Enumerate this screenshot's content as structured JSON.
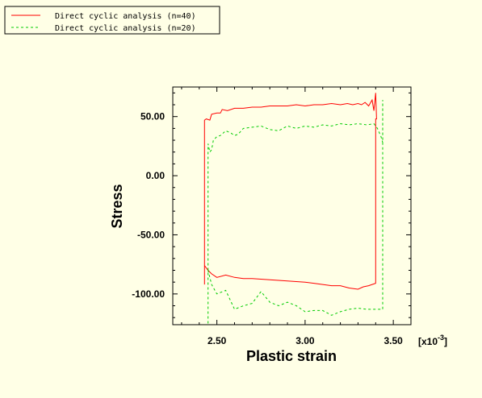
{
  "chart_data": {
    "type": "line",
    "xlabel": "Plastic strain",
    "ylabel": "Stress",
    "x_multiplier": "[x10",
    "x_multiplier_exp": "-3",
    "x_multiplier_close": "]",
    "xlim": [
      2.25,
      3.6
    ],
    "ylim": [
      -126,
      75
    ],
    "x_ticks": [
      2.5,
      3.0,
      3.5
    ],
    "x_tick_labels": [
      "2.50",
      "3.00",
      "3.50"
    ],
    "y_ticks": [
      50,
      0,
      -50,
      -100
    ],
    "y_tick_labels": [
      "50.00",
      "0.00",
      "-50.00",
      "-100.00"
    ],
    "grid": false,
    "legend_position": "top-left",
    "series": [
      {
        "name": "Direct cyclic analysis (n=40)",
        "color": "#ff0000",
        "style": "solid",
        "points": [
          [
            2.43,
            -92
          ],
          [
            2.43,
            47
          ],
          [
            2.44,
            48
          ],
          [
            2.46,
            47
          ],
          [
            2.47,
            52
          ],
          [
            2.5,
            53
          ],
          [
            2.52,
            53
          ],
          [
            2.53,
            56
          ],
          [
            2.56,
            55
          ],
          [
            2.6,
            57
          ],
          [
            2.65,
            57
          ],
          [
            2.7,
            58
          ],
          [
            2.75,
            58
          ],
          [
            2.8,
            59
          ],
          [
            2.85,
            59
          ],
          [
            2.9,
            59
          ],
          [
            2.95,
            60
          ],
          [
            3.0,
            59
          ],
          [
            3.05,
            60
          ],
          [
            3.1,
            60
          ],
          [
            3.15,
            61
          ],
          [
            3.2,
            60
          ],
          [
            3.24,
            61
          ],
          [
            3.27,
            60
          ],
          [
            3.3,
            61
          ],
          [
            3.32,
            60
          ],
          [
            3.34,
            62
          ],
          [
            3.36,
            59
          ],
          [
            3.38,
            64
          ],
          [
            3.39,
            55
          ],
          [
            3.4,
            70
          ],
          [
            3.405,
            48
          ],
          [
            3.4,
            48
          ],
          [
            3.4,
            -91
          ],
          [
            3.38,
            -92
          ],
          [
            3.36,
            -93
          ],
          [
            3.33,
            -94
          ],
          [
            3.3,
            -96
          ],
          [
            3.25,
            -95
          ],
          [
            3.2,
            -93
          ],
          [
            3.15,
            -93
          ],
          [
            3.1,
            -92
          ],
          [
            3.05,
            -91
          ],
          [
            3.0,
            -90
          ],
          [
            2.9,
            -89
          ],
          [
            2.8,
            -88
          ],
          [
            2.7,
            -87
          ],
          [
            2.65,
            -87
          ],
          [
            2.6,
            -86
          ],
          [
            2.55,
            -84
          ],
          [
            2.5,
            -86
          ],
          [
            2.47,
            -83
          ],
          [
            2.45,
            -80
          ],
          [
            2.43,
            -76
          ]
        ]
      },
      {
        "name": "Direct cyclic analysis (n=20)",
        "color": "#00cc00",
        "style": "dashed",
        "points": [
          [
            2.45,
            -125
          ],
          [
            2.45,
            27
          ],
          [
            2.46,
            20
          ],
          [
            2.47,
            22
          ],
          [
            2.48,
            30
          ],
          [
            2.5,
            33
          ],
          [
            2.52,
            34
          ],
          [
            2.55,
            38
          ],
          [
            2.58,
            36
          ],
          [
            2.6,
            34
          ],
          [
            2.62,
            35
          ],
          [
            2.65,
            40
          ],
          [
            2.7,
            41
          ],
          [
            2.75,
            42
          ],
          [
            2.8,
            39
          ],
          [
            2.85,
            38
          ],
          [
            2.9,
            42
          ],
          [
            2.95,
            40
          ],
          [
            3.0,
            42
          ],
          [
            3.05,
            41
          ],
          [
            3.1,
            43
          ],
          [
            3.15,
            42
          ],
          [
            3.2,
            44
          ],
          [
            3.25,
            43
          ],
          [
            3.3,
            44
          ],
          [
            3.35,
            43
          ],
          [
            3.39,
            44
          ],
          [
            3.41,
            40
          ],
          [
            3.43,
            33
          ],
          [
            3.44,
            28
          ],
          [
            3.44,
            64
          ],
          [
            3.44,
            -113
          ],
          [
            3.4,
            -113
          ],
          [
            3.35,
            -113
          ],
          [
            3.3,
            -112
          ],
          [
            3.25,
            -113
          ],
          [
            3.2,
            -115
          ],
          [
            3.15,
            -118
          ],
          [
            3.1,
            -114
          ],
          [
            3.05,
            -114
          ],
          [
            3.0,
            -115
          ],
          [
            2.95,
            -110
          ],
          [
            2.9,
            -107
          ],
          [
            2.85,
            -110
          ],
          [
            2.8,
            -107
          ],
          [
            2.75,
            -98
          ],
          [
            2.7,
            -108
          ],
          [
            2.65,
            -110
          ],
          [
            2.6,
            -113
          ],
          [
            2.55,
            -97
          ],
          [
            2.5,
            -100
          ],
          [
            2.47,
            -92
          ],
          [
            2.45,
            -80
          ]
        ]
      }
    ]
  }
}
